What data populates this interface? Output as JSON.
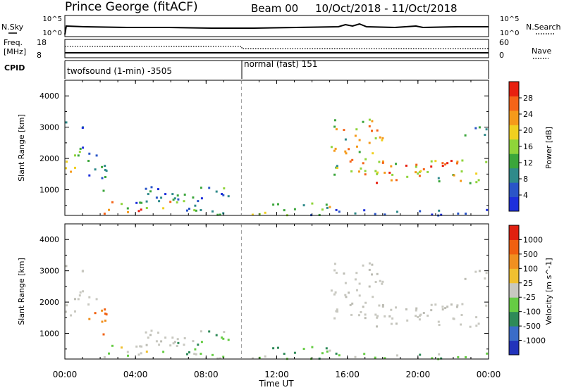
{
  "header": {
    "station": "Prince George (fitACF)",
    "beam": "Beam 00",
    "dates": "10/Oct/2018 - 11/Oct/2018"
  },
  "top_panels": {
    "nsky_label": "N.Sky",
    "nsky_ticks": [
      "10^5",
      "10^0"
    ],
    "nsearch_label": "N.Search",
    "nsearch_ticks": [
      "10^5",
      "10^0"
    ],
    "freq_label_1": "Freq.",
    "freq_label_2": "[MHz]",
    "freq_ticks": [
      "18",
      "8"
    ],
    "nave_label": "Nave",
    "nave_ticks": [
      "60",
      "0"
    ],
    "cpid_label": "CPID",
    "cpid_modes": [
      {
        "label": "twofsound (1-min) -3505",
        "start_hour": 0
      },
      {
        "label": "normal (fast) 151",
        "start_hour": 10
      }
    ]
  },
  "chart_data": [
    {
      "type": "heatmap",
      "title": "",
      "xlabel": "",
      "ylabel": "Slant Range [km]",
      "x_ticks": [
        "00:00",
        "04:00",
        "08:00",
        "12:00",
        "16:00",
        "20:00",
        "00:00"
      ],
      "x_range_hours": [
        0,
        24
      ],
      "y_ticks": [
        "1000",
        "2000",
        "3000",
        "4000"
      ],
      "ylim": [
        180,
        4500
      ],
      "colorbar_label": "Power [dB]",
      "colorbar_ticks": [
        "4",
        "8",
        "12",
        "16",
        "20",
        "24",
        "28"
      ],
      "colorbar_colors": [
        "#1d2fdc",
        "#2a55c8",
        "#2f8a8a",
        "#3ba63b",
        "#8fd43a",
        "#f0d020",
        "#f59a1a",
        "#f56418",
        "#e82010"
      ],
      "mode_change_hour": 10
    },
    {
      "type": "heatmap",
      "title": "",
      "xlabel": "Time UT",
      "ylabel": "Slant Range [km]",
      "x_ticks": [
        "00:00",
        "04:00",
        "08:00",
        "12:00",
        "16:00",
        "20:00",
        "00:00"
      ],
      "x_range_hours": [
        0,
        24
      ],
      "y_ticks": [
        "1000",
        "2000",
        "3000",
        "4000"
      ],
      "ylim": [
        180,
        4500
      ],
      "colorbar_label": "Velocity [m s^-1]",
      "colorbar_ticks": [
        "1000",
        "500",
        "100",
        "25",
        "-25",
        "-100",
        "-500",
        "-1000"
      ],
      "colorbar_colors": [
        "#2233bb",
        "#3a6cc8",
        "#2e8a58",
        "#66cc44",
        "#c8c8c0",
        "#f0c030",
        "#f09020",
        "#f06010",
        "#e02010"
      ],
      "mode_change_hour": 10
    }
  ]
}
